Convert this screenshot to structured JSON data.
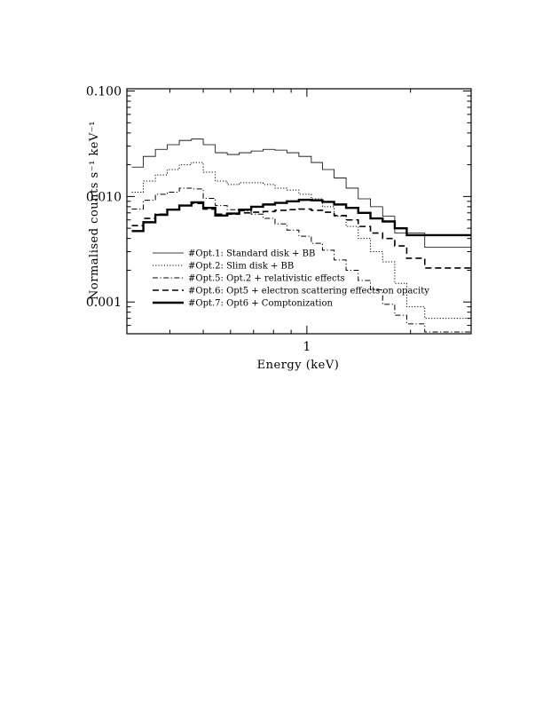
{
  "chart_data": {
    "type": "line",
    "step": true,
    "xlabel": "Energy (keV)",
    "ylabel": "Normalised counts s⁻¹ keV⁻¹",
    "x_scale": "log",
    "y_scale": "log",
    "xlim": [
      0.3,
      3.0
    ],
    "ylim": [
      0.0005,
      0.105
    ],
    "x_tick_labels": [
      {
        "value": 1,
        "label": "1"
      }
    ],
    "y_tick_labels": [
      {
        "value": 0.1,
        "label": "0.100"
      },
      {
        "value": 0.01,
        "label": "0.010"
      },
      {
        "value": 0.001,
        "label": "0.001"
      }
    ],
    "legend_position": "bottom-left",
    "bin_edges": [
      0.31,
      0.335,
      0.363,
      0.393,
      0.426,
      0.462,
      0.5,
      0.542,
      0.587,
      0.636,
      0.689,
      0.746,
      0.808,
      0.875,
      0.948,
      1.03,
      1.11,
      1.2,
      1.3,
      1.41,
      1.53,
      1.66,
      1.8,
      1.95,
      2.2,
      2.5,
      3.0
    ],
    "series": [
      {
        "name": "#Opt.1: Standard disk + BB",
        "style": "solid",
        "stroke_width": 0.8,
        "values": [
          0.019,
          0.024,
          0.028,
          0.031,
          0.034,
          0.035,
          0.031,
          0.026,
          0.025,
          0.026,
          0.027,
          0.028,
          0.0275,
          0.026,
          0.024,
          0.021,
          0.018,
          0.015,
          0.012,
          0.0095,
          0.008,
          0.0065,
          0.0045,
          0.0045,
          0.0033,
          0.0033
        ]
      },
      {
        "name": "#Opt.2: Slim disk + BB",
        "style": "dotted",
        "stroke_width": 1.0,
        "values": [
          0.011,
          0.014,
          0.016,
          0.018,
          0.02,
          0.021,
          0.017,
          0.014,
          0.013,
          0.0135,
          0.0135,
          0.013,
          0.012,
          0.0115,
          0.0105,
          0.0095,
          0.008,
          0.0065,
          0.0052,
          0.004,
          0.003,
          0.0024,
          0.0015,
          0.0009,
          0.0007,
          0.0007
        ]
      },
      {
        "name": "#Opt.5: Opt.2 + relativistic effects",
        "style": "dashdot",
        "stroke_width": 1.0,
        "values": [
          0.0076,
          0.0092,
          0.0105,
          0.011,
          0.012,
          0.0118,
          0.0096,
          0.0082,
          0.0075,
          0.0073,
          0.0068,
          0.0062,
          0.0055,
          0.0048,
          0.0042,
          0.0036,
          0.0031,
          0.0025,
          0.002,
          0.0016,
          0.0013,
          0.00095,
          0.00075,
          0.00062,
          0.00052,
          0.00052
        ]
      },
      {
        "name": "#Opt.6: Opt5 + electron scattering effects on opacity",
        "style": "dashed",
        "stroke_width": 1.6,
        "values": [
          0.0053,
          0.0062,
          0.0068,
          0.0075,
          0.0082,
          0.0086,
          0.0076,
          0.0068,
          0.0068,
          0.007,
          0.0071,
          0.0072,
          0.0074,
          0.0075,
          0.0076,
          0.0074,
          0.0071,
          0.0066,
          0.006,
          0.0052,
          0.0045,
          0.004,
          0.0034,
          0.0026,
          0.0021,
          0.0021
        ]
      },
      {
        "name": "#Opt.7: Opt6 + Comptonization",
        "style": "solid",
        "stroke_width": 2.4,
        "values": [
          0.0047,
          0.0057,
          0.0067,
          0.0075,
          0.0082,
          0.0088,
          0.0078,
          0.0066,
          0.0069,
          0.0075,
          0.008,
          0.0084,
          0.0087,
          0.009,
          0.0093,
          0.0092,
          0.0089,
          0.0084,
          0.0078,
          0.007,
          0.0062,
          0.0058,
          0.005,
          0.0043,
          0.0043,
          0.0043
        ]
      }
    ]
  }
}
